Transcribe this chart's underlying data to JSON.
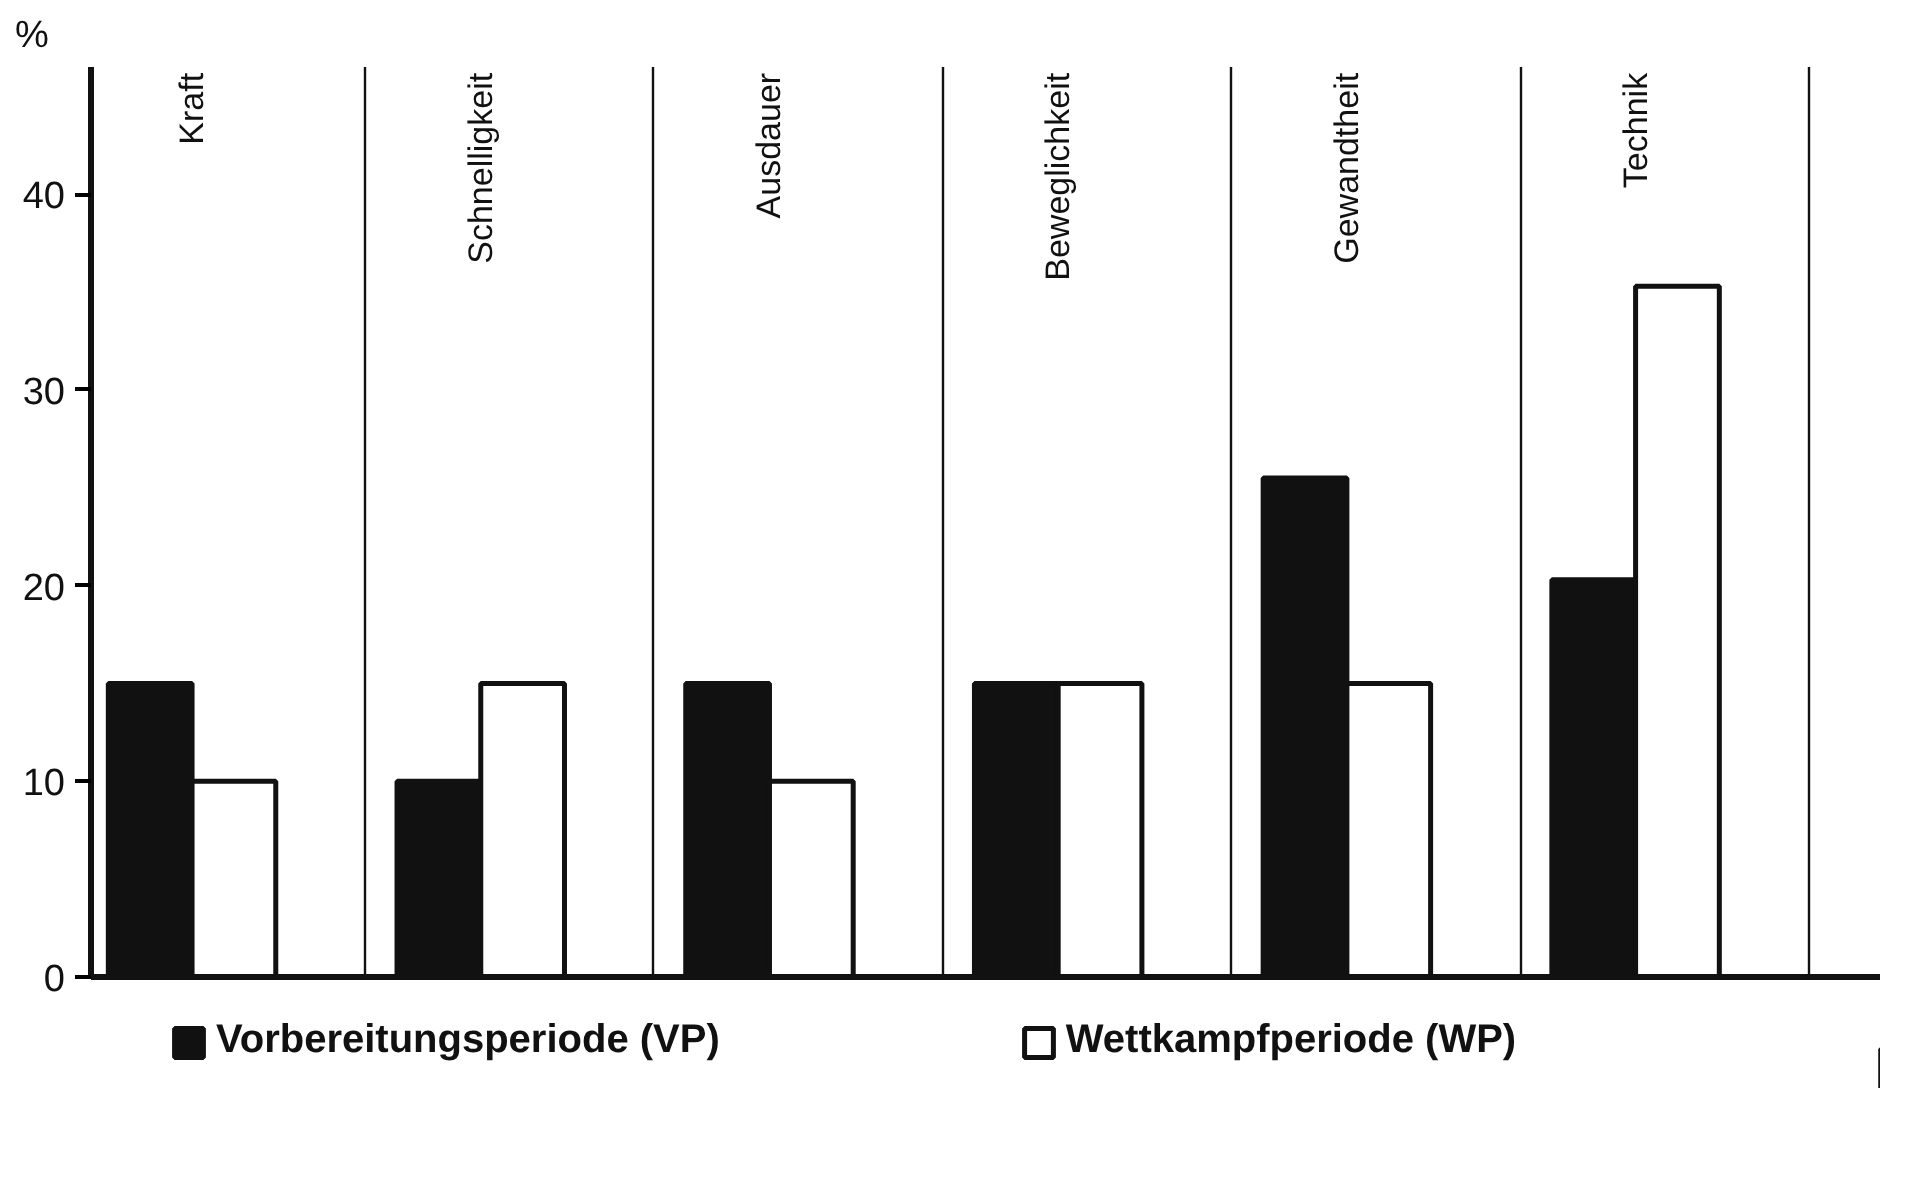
{
  "chart_data": {
    "type": "bar",
    "ylabel": "%",
    "categories": [
      "Kraft",
      "Schnelligkeit",
      "Ausdauer",
      "Beweglichkeit",
      "Gewandtheit",
      "Technik"
    ],
    "series": [
      {
        "name": "Vorbereitungsperiode (VP)",
        "color": "#111111",
        "values": [
          15,
          10,
          15,
          15,
          25.5,
          20.3
        ]
      },
      {
        "name": "Wettkampfperiode (WP)",
        "color": "#ffffff",
        "values": [
          10,
          15,
          10,
          15,
          15,
          35.3
        ]
      }
    ],
    "ylim": [
      0,
      46.5
    ],
    "yticks": [
      0,
      10,
      20,
      30,
      40
    ],
    "grid": "x",
    "legend": "bottom"
  }
}
